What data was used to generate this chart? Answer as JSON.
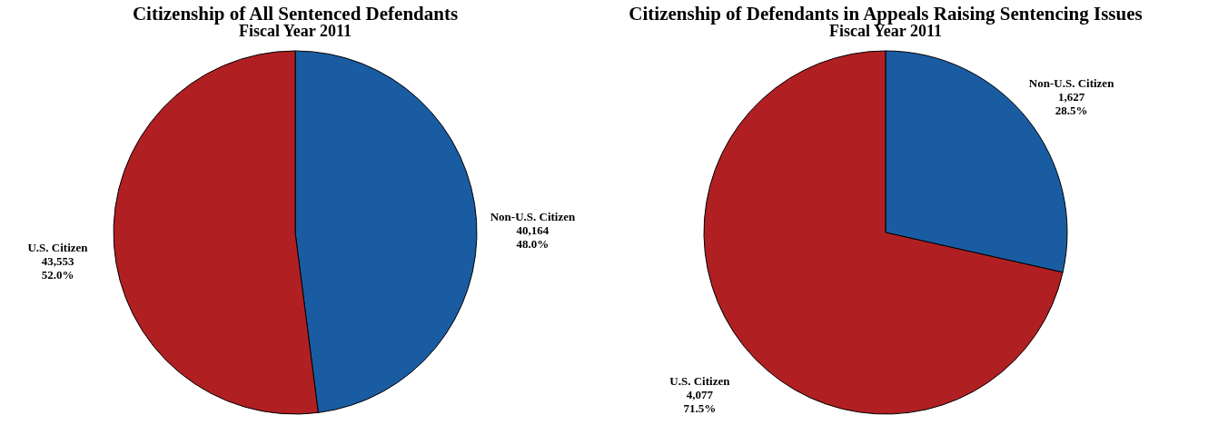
{
  "chart_data": [
    {
      "type": "pie",
      "title": "Citizenship of All Sentenced Defendants",
      "subtitle": "Fiscal Year 2011",
      "categories": [
        "Non-U.S. Citizen",
        "U.S. Citizen"
      ],
      "values": [
        40164,
        43553
      ],
      "colors": [
        "#1a5ca2",
        "#b02023"
      ],
      "value_labels": [
        "40,164\n48.0%",
        "43,553\n52.0%"
      ],
      "legend": false
    },
    {
      "type": "pie",
      "title": "Citizenship of Defendants in Appeals Raising Sentencing Issues",
      "subtitle": "Fiscal Year 2011",
      "categories": [
        "Non-U.S. Citizen",
        "U.S. Citizen"
      ],
      "values": [
        1627,
        4077
      ],
      "colors": [
        "#1a5ca2",
        "#b02023"
      ],
      "value_labels": [
        "1,627\n28.5%",
        "4,077\n71.5%"
      ],
      "legend": false
    }
  ]
}
